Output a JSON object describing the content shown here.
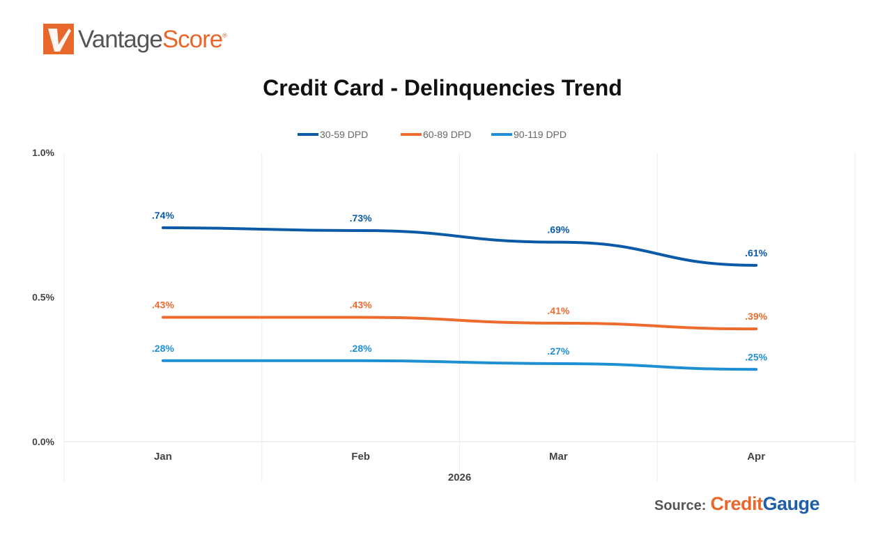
{
  "brand": {
    "name_part1": "Vantage",
    "name_part2": "Score",
    "reg_mark": "®"
  },
  "source": {
    "label": "Source:",
    "brand_part1": "Credit",
    "brand_part2": "Gauge"
  },
  "colors": {
    "brand_orange": "#e8672b",
    "brand_gray": "#555555",
    "gauge_blue": "#1f5ea8"
  },
  "chart_data": {
    "type": "line",
    "title": "Credit Card - Delinquencies Trend",
    "categories": [
      "Jan",
      "Feb",
      "Mar",
      "Apr"
    ],
    "xlabel": "2026",
    "ylabel": "",
    "ylim": [
      0,
      1.0
    ],
    "yticks": [
      0.0,
      0.5,
      1.0
    ],
    "ytick_labels": [
      "0.0%",
      "0.5%",
      "1.0%"
    ],
    "grid": "vertical",
    "legend": "top-center",
    "series": [
      {
        "name": "30-59 DPD",
        "color": "#0a5aa8",
        "values": [
          0.74,
          0.73,
          0.69,
          0.61
        ],
        "labels": [
          ".74%",
          ".73%",
          ".69%",
          ".61%"
        ]
      },
      {
        "name": "60-89 DPD",
        "color": "#ec6b2d",
        "values": [
          0.43,
          0.43,
          0.41,
          0.39
        ],
        "labels": [
          ".43%",
          ".43%",
          ".41%",
          ".39%"
        ]
      },
      {
        "name": "90-119 DPD",
        "color": "#1f8fd3",
        "values": [
          0.28,
          0.28,
          0.27,
          0.25
        ],
        "labels": [
          ".28%",
          ".28%",
          ".27%",
          ".25%"
        ]
      }
    ]
  }
}
